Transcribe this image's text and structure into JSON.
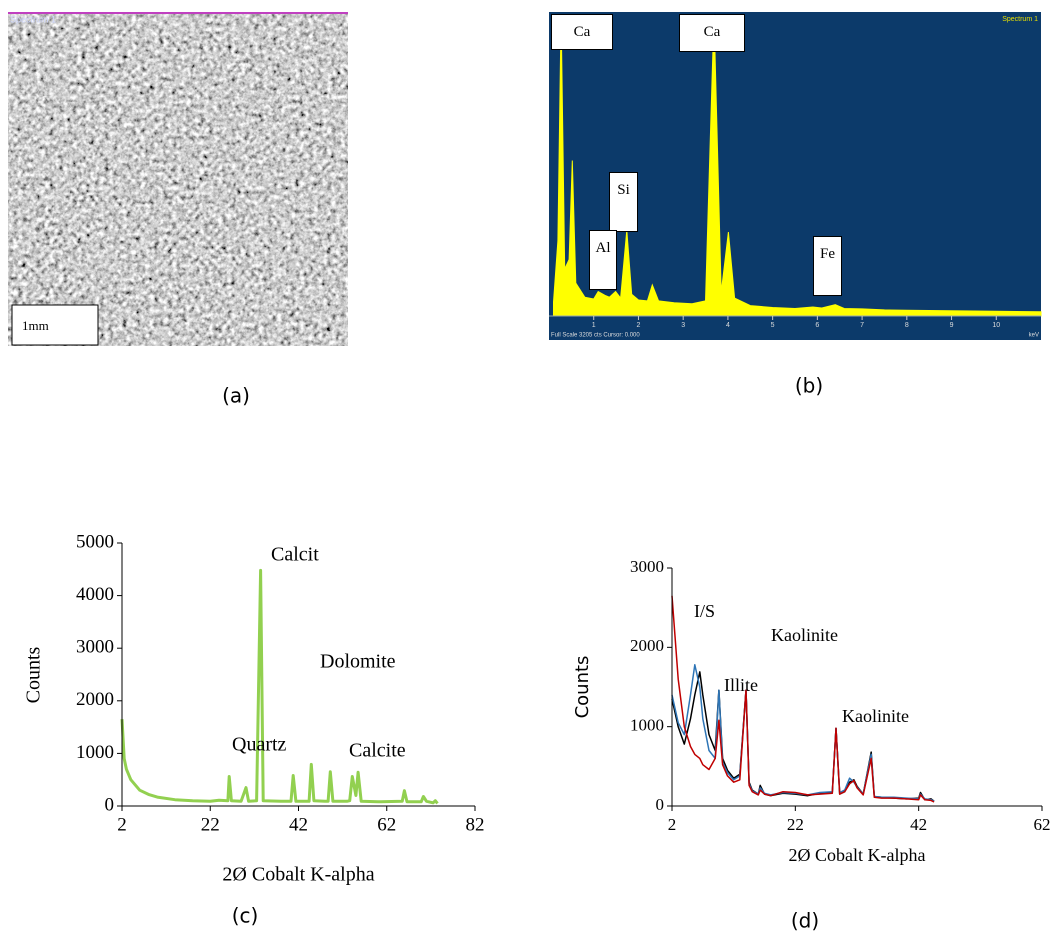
{
  "image_panel": {
    "header": "Spectrum 1",
    "scale_label": "1mm",
    "caption": "(a)"
  },
  "chart_data": [
    {
      "type": "area",
      "caption": "(b)",
      "title": "Spectrum 1",
      "footer": "Full Scale 3205 cts Cursor: 0.000",
      "x_unit": "keV",
      "x": [
        0.1,
        0.2,
        0.27,
        0.35,
        0.45,
        0.52,
        0.6,
        0.8,
        1.0,
        1.1,
        1.25,
        1.35,
        1.49,
        1.6,
        1.74,
        1.85,
        2.0,
        2.2,
        2.31,
        2.45,
        2.8,
        3.2,
        3.5,
        3.69,
        3.85,
        4.01,
        4.15,
        4.5,
        5.0,
        5.5,
        5.9,
        6.1,
        6.4,
        6.6,
        7.0,
        7.5,
        8,
        9,
        10,
        11
      ],
      "values": [
        150,
        800,
        3205,
        500,
        600,
        1650,
        350,
        200,
        180,
        260,
        220,
        200,
        260,
        190,
        910,
        230,
        170,
        160,
        330,
        160,
        140,
        130,
        160,
        3205,
        250,
        890,
        190,
        110,
        90,
        80,
        95,
        85,
        120,
        80,
        75,
        65,
        60,
        55,
        50,
        45
      ],
      "color": "#ffff00",
      "background": "#0c3a6a",
      "xlim": [
        0,
        11
      ],
      "xticks": [
        1,
        2,
        3,
        4,
        5,
        6,
        7,
        8,
        9,
        10
      ],
      "ylim": [
        0,
        3205
      ],
      "annotations": [
        "Ca",
        "Ca",
        "Si",
        "Al",
        "Fe"
      ]
    },
    {
      "type": "line",
      "caption": "(c)",
      "xlabel": "2Ø Cobalt K-alpha",
      "ylabel": "Counts",
      "x": [
        2,
        2.5,
        3,
        4,
        6,
        8,
        10,
        14,
        18,
        22,
        24,
        26,
        26.3,
        26.8,
        29,
        30.1,
        30.7,
        32.5,
        33.4,
        34,
        38,
        40.3,
        40.8,
        41.4,
        44.4,
        44.9,
        45.5,
        48,
        48.7,
        49.2,
        49.8,
        53,
        53.6,
        54.2,
        55,
        55.5,
        56.2,
        60,
        65.5,
        66,
        66.6,
        69.8,
        70.3,
        71,
        72.5,
        73,
        73.5
      ],
      "series": [
        {
          "color": "#92d050",
          "values": [
            1650,
            900,
            700,
            500,
            300,
            220,
            170,
            120,
            100,
            90,
            110,
            100,
            560,
            100,
            90,
            350,
            90,
            100,
            4480,
            100,
            90,
            90,
            580,
            90,
            90,
            790,
            100,
            90,
            90,
            650,
            90,
            90,
            100,
            560,
            200,
            640,
            90,
            80,
            90,
            290,
            80,
            80,
            180,
            90,
            60,
            100,
            50
          ]
        }
      ],
      "xlim": [
        2,
        82
      ],
      "xticks": [
        2,
        22,
        42,
        62,
        82
      ],
      "ylim": [
        0,
        5000
      ],
      "yticks": [
        0,
        1000,
        2000,
        3000,
        4000,
        5000
      ],
      "annotations": [
        "Calcit",
        "Dolomite",
        "Quartz",
        "Calcite"
      ]
    },
    {
      "type": "line",
      "caption": "(d)",
      "xlabel": "2Ø Cobalt K-alpha",
      "ylabel": "Counts",
      "x": [
        2,
        3,
        4,
        5,
        5.7,
        6.5,
        7,
        8,
        9,
        9.6,
        10.2,
        11,
        12,
        13,
        14,
        14.5,
        15,
        16,
        16.3,
        17,
        18,
        20,
        22,
        24,
        26,
        28,
        28.6,
        29.2,
        30,
        30.8,
        31.5,
        32,
        33,
        34.3,
        34.8,
        36,
        38,
        40,
        42,
        42.3,
        43,
        44,
        44.5
      ],
      "series": [
        {
          "color": "#000000",
          "values": [
            1350,
            1000,
            780,
            1100,
            1400,
            1690,
            1400,
            900,
            700,
            1460,
            600,
            450,
            350,
            400,
            1460,
            300,
            200,
            150,
            260,
            150,
            130,
            160,
            150,
            130,
            160,
            170,
            980,
            150,
            180,
            300,
            330,
            250,
            150,
            680,
            120,
            110,
            100,
            90,
            100,
            170,
            80,
            90,
            60
          ]
        },
        {
          "color": "#2e75b6",
          "values": [
            1400,
            1050,
            900,
            1400,
            1780,
            1500,
            1100,
            700,
            600,
            1460,
            550,
            420,
            330,
            380,
            1460,
            280,
            190,
            150,
            230,
            160,
            140,
            170,
            160,
            140,
            170,
            180,
            980,
            170,
            200,
            350,
            300,
            240,
            150,
            650,
            120,
            110,
            110,
            100,
            90,
            150,
            90,
            80,
            60
          ]
        },
        {
          "color": "#c00000",
          "values": [
            2650,
            1600,
            1000,
            750,
            650,
            600,
            520,
            460,
            600,
            1080,
            520,
            380,
            300,
            330,
            1460,
            260,
            180,
            140,
            200,
            150,
            130,
            180,
            170,
            140,
            150,
            160,
            980,
            150,
            180,
            280,
            320,
            230,
            140,
            600,
            110,
            100,
            100,
            90,
            80,
            140,
            80,
            70,
            50
          ]
        }
      ],
      "xlim": [
        2,
        62
      ],
      "xticks": [
        2,
        22,
        42,
        62
      ],
      "ylim": [
        0,
        3000
      ],
      "yticks": [
        0,
        1000,
        2000,
        3000
      ],
      "annotations": [
        "I/S",
        "Kaolinite",
        "Illite",
        "Kaolinite"
      ]
    }
  ]
}
